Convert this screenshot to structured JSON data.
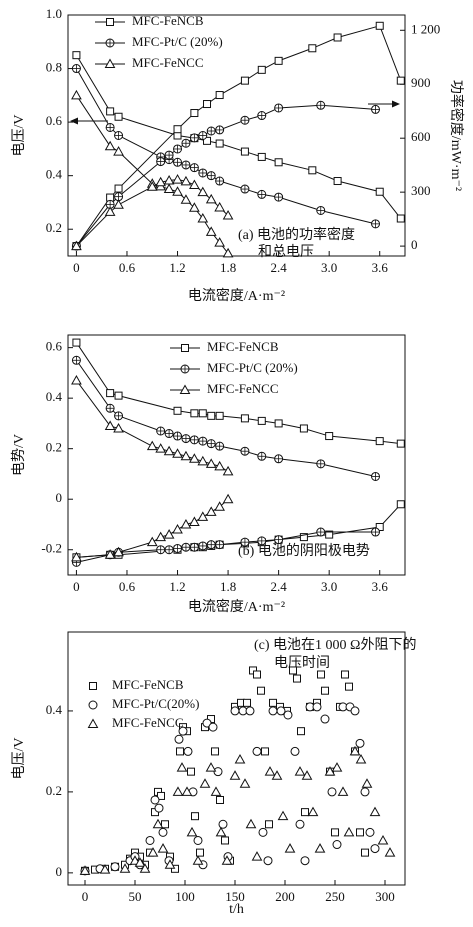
{
  "chart_data": [
    {
      "type": "line",
      "xlabel": "电流密度/A·m⁻²",
      "ylabel": "电压/V",
      "y2label": "功率密度/mW·m⁻²",
      "annotation": [
        "(a) 电池的功率密度",
        "和总电压"
      ],
      "xlim": [
        -0.1,
        3.9
      ],
      "xticks": [
        0,
        0.6,
        1.2,
        1.8,
        2.4,
        {
          "value": 3,
          "label": "3.0"
        },
        3.6
      ],
      "ylim": [
        0.1,
        1.0
      ],
      "yticks": [
        0.2,
        0.4,
        0.6,
        0.8,
        {
          "value": 1,
          "label": "1.0"
        }
      ],
      "y2lim": [
        -55,
        1285
      ],
      "y2ticks": [
        0,
        300,
        600,
        900,
        {
          "value": 1200,
          "label": "1 200"
        }
      ],
      "color": "#111111",
      "series": [
        {
          "name": "MFC-FeNCB",
          "marker": "square",
          "x": [
            0,
            0.4,
            0.5,
            1.2,
            1.4,
            1.55,
            1.7,
            2.0,
            2.2,
            2.4,
            2.8,
            3.1,
            3.6,
            3.85
          ],
          "values": [
            0.85,
            0.64,
            0.62,
            0.55,
            0.54,
            0.53,
            0.52,
            0.49,
            0.47,
            0.45,
            0.42,
            0.38,
            0.34,
            0.24
          ],
          "y2values": [
            0,
            270,
            320,
            650,
            740,
            790,
            840,
            920,
            980,
            1030,
            1100,
            1160,
            1225,
            920
          ]
        },
        {
          "name": "MFC-Pt/C (20%)",
          "marker": "circle-plus",
          "x": [
            0,
            0.4,
            0.5,
            1.0,
            1.1,
            1.2,
            1.3,
            1.4,
            1.5,
            1.6,
            1.7,
            2.0,
            2.2,
            2.4,
            2.9,
            3.55
          ],
          "values": [
            0.8,
            0.58,
            0.55,
            0.47,
            0.46,
            0.45,
            0.44,
            0.43,
            0.41,
            0.4,
            0.38,
            0.35,
            0.33,
            0.32,
            0.27,
            0.22
          ],
          "y2values": [
            0,
            232,
            275,
            470,
            506,
            540,
            572,
            602,
            615,
            640,
            646,
            700,
            726,
            768,
            783,
            760
          ]
        },
        {
          "name": "MFC-FeNCC",
          "marker": "triangle",
          "x": [
            0,
            0.4,
            0.5,
            0.9,
            1.0,
            1.1,
            1.2,
            1.3,
            1.4,
            1.5,
            1.6,
            1.7,
            1.8
          ],
          "values": [
            0.7,
            0.51,
            0.49,
            0.37,
            0.36,
            0.35,
            0.34,
            0.31,
            0.28,
            0.24,
            0.19,
            0.15,
            0.11
          ],
          "y2values": [
            0,
            190,
            230,
            330,
            355,
            365,
            370,
            360,
            340,
            300,
            260,
            215,
            170
          ]
        }
      ]
    },
    {
      "type": "line",
      "xlabel": "电流密度/A·m⁻²",
      "ylabel": "电势/V",
      "annotation": [
        "(b) 电池的阴阳极电势"
      ],
      "xlim": [
        -0.1,
        3.9
      ],
      "xticks": [
        0,
        0.6,
        1.2,
        1.8,
        2.4,
        {
          "value": 3,
          "label": "3.0"
        },
        3.6
      ],
      "ylim": [
        -0.3,
        0.65
      ],
      "yticks": [
        -0.2,
        0,
        0.2,
        0.4,
        0.6
      ],
      "color": "#111111",
      "series": [
        {
          "name": "MFC-FeNCB",
          "marker": "square",
          "x": [
            0,
            0.4,
            0.5,
            1.2,
            1.4,
            1.5,
            1.6,
            1.7,
            2.0,
            2.2,
            2.4,
            2.7,
            3.0,
            3.6,
            3.85
          ],
          "values": [
            0.62,
            0.42,
            0.41,
            0.35,
            0.34,
            0.34,
            0.33,
            0.33,
            0.32,
            0.31,
            0.3,
            0.28,
            0.25,
            0.23,
            0.22
          ],
          "anode_values": [
            -0.23,
            -0.22,
            -0.22,
            -0.2,
            -0.19,
            -0.19,
            -0.185,
            -0.18,
            -0.175,
            -0.17,
            -0.16,
            -0.15,
            -0.14,
            -0.11,
            -0.02
          ]
        },
        {
          "name": "MFC-Pt/C (20%)",
          "marker": "circle-plus",
          "x": [
            0,
            0.4,
            0.5,
            1.0,
            1.1,
            1.2,
            1.3,
            1.4,
            1.5,
            1.6,
            1.7,
            2.0,
            2.2,
            2.4,
            2.9,
            3.55
          ],
          "values": [
            0.55,
            0.36,
            0.33,
            0.27,
            0.26,
            0.25,
            0.24,
            0.235,
            0.23,
            0.22,
            0.21,
            0.19,
            0.17,
            0.16,
            0.14,
            0.09
          ],
          "anode_values": [
            -0.25,
            -0.22,
            -0.21,
            -0.2,
            -0.2,
            -0.195,
            -0.19,
            -0.19,
            -0.185,
            -0.18,
            -0.18,
            -0.17,
            -0.165,
            -0.16,
            -0.13,
            -0.13
          ]
        },
        {
          "name": "MFC-FeNCC",
          "marker": "triangle",
          "x": [
            0,
            0.4,
            0.5,
            0.9,
            1.0,
            1.1,
            1.2,
            1.3,
            1.4,
            1.5,
            1.6,
            1.7,
            1.8
          ],
          "values": [
            0.47,
            0.29,
            0.28,
            0.21,
            0.2,
            0.19,
            0.18,
            0.17,
            0.16,
            0.15,
            0.14,
            0.13,
            0.11
          ],
          "anode_values": [
            -0.23,
            -0.22,
            -0.21,
            -0.17,
            -0.15,
            -0.14,
            -0.12,
            -0.1,
            -0.09,
            -0.07,
            -0.05,
            -0.03,
            0.0
          ]
        }
      ]
    },
    {
      "type": "scatter",
      "xlabel": "t/h",
      "ylabel": "电压/V",
      "annotation": [
        "(c) 电池在1 000 Ω外阻下的",
        "电压时间"
      ],
      "xlim": [
        -17,
        320
      ],
      "xticks": [
        0,
        50,
        100,
        150,
        200,
        250,
        300
      ],
      "ylim": [
        -0.03,
        0.595
      ],
      "yticks": [
        0,
        0.2,
        0.4
      ],
      "color": "#111111",
      "series": [
        {
          "name": "MFC-FeNCB",
          "marker": "square",
          "x": [
            0,
            10,
            20,
            30,
            40,
            45,
            50,
            55,
            60,
            65,
            70,
            73,
            76,
            80,
            85,
            90,
            95,
            98,
            102,
            106,
            110,
            115,
            120,
            126,
            130,
            135,
            140,
            145,
            150,
            156,
            162,
            168,
            172,
            176,
            180,
            184,
            188,
            195,
            202,
            208,
            212,
            216,
            220,
            225,
            232,
            236,
            240,
            245,
            250,
            255,
            260,
            264,
            270,
            275,
            280
          ],
          "values": [
            0.005,
            0.008,
            0.01,
            0.015,
            0.02,
            0.035,
            0.05,
            0.04,
            0.02,
            0.05,
            0.15,
            0.2,
            0.19,
            0.12,
            0.04,
            0.01,
            0.3,
            0.36,
            0.35,
            0.25,
            0.14,
            0.05,
            0.36,
            0.38,
            0.3,
            0.18,
            0.08,
            0.03,
            0.41,
            0.42,
            0.42,
            0.5,
            0.49,
            0.45,
            0.3,
            0.12,
            0.42,
            0.41,
            0.4,
            0.5,
            0.48,
            0.35,
            0.15,
            0.41,
            0.42,
            0.49,
            0.45,
            0.25,
            0.1,
            0.41,
            0.49,
            0.46,
            0.3,
            0.1,
            0.05
          ]
        },
        {
          "name": "MFC-Pt/C(20%)",
          "marker": "circle",
          "x": [
            0,
            15,
            30,
            45,
            50,
            55,
            65,
            70,
            74,
            78,
            84,
            94,
            98,
            103,
            108,
            113,
            118,
            122,
            128,
            133,
            138,
            143,
            150,
            158,
            165,
            172,
            178,
            183,
            188,
            196,
            203,
            210,
            215,
            220,
            225,
            232,
            240,
            247,
            252,
            258,
            265,
            270,
            275,
            280,
            285,
            290
          ],
          "values": [
            0.005,
            0.01,
            0.015,
            0.03,
            0.04,
            0.02,
            0.08,
            0.18,
            0.16,
            0.1,
            0.03,
            0.33,
            0.35,
            0.3,
            0.2,
            0.08,
            0.02,
            0.37,
            0.36,
            0.25,
            0.12,
            0.04,
            0.4,
            0.4,
            0.4,
            0.3,
            0.1,
            0.03,
            0.4,
            0.4,
            0.39,
            0.3,
            0.12,
            0.03,
            0.41,
            0.41,
            0.38,
            0.2,
            0.07,
            0.41,
            0.41,
            0.4,
            0.32,
            0.2,
            0.1,
            0.06
          ]
        },
        {
          "name": "MFC-FeNCC",
          "marker": "triangle",
          "x": [
            0,
            20,
            40,
            50,
            55,
            60,
            68,
            73,
            78,
            85,
            93,
            97,
            102,
            107,
            113,
            120,
            126,
            131,
            136,
            142,
            150,
            155,
            160,
            166,
            172,
            185,
            192,
            198,
            205,
            215,
            222,
            228,
            235,
            245,
            252,
            258,
            264,
            270,
            276,
            282,
            290,
            298,
            305
          ],
          "values": [
            0.005,
            0.008,
            0.01,
            0.03,
            0.025,
            0.01,
            0.05,
            0.12,
            0.06,
            0.02,
            0.2,
            0.26,
            0.2,
            0.1,
            0.03,
            0.22,
            0.26,
            0.2,
            0.1,
            0.03,
            0.24,
            0.28,
            0.22,
            0.12,
            0.04,
            0.25,
            0.24,
            0.14,
            0.06,
            0.25,
            0.24,
            0.15,
            0.06,
            0.25,
            0.26,
            0.2,
            0.1,
            0.3,
            0.28,
            0.22,
            0.15,
            0.08,
            0.05
          ]
        }
      ]
    }
  ]
}
